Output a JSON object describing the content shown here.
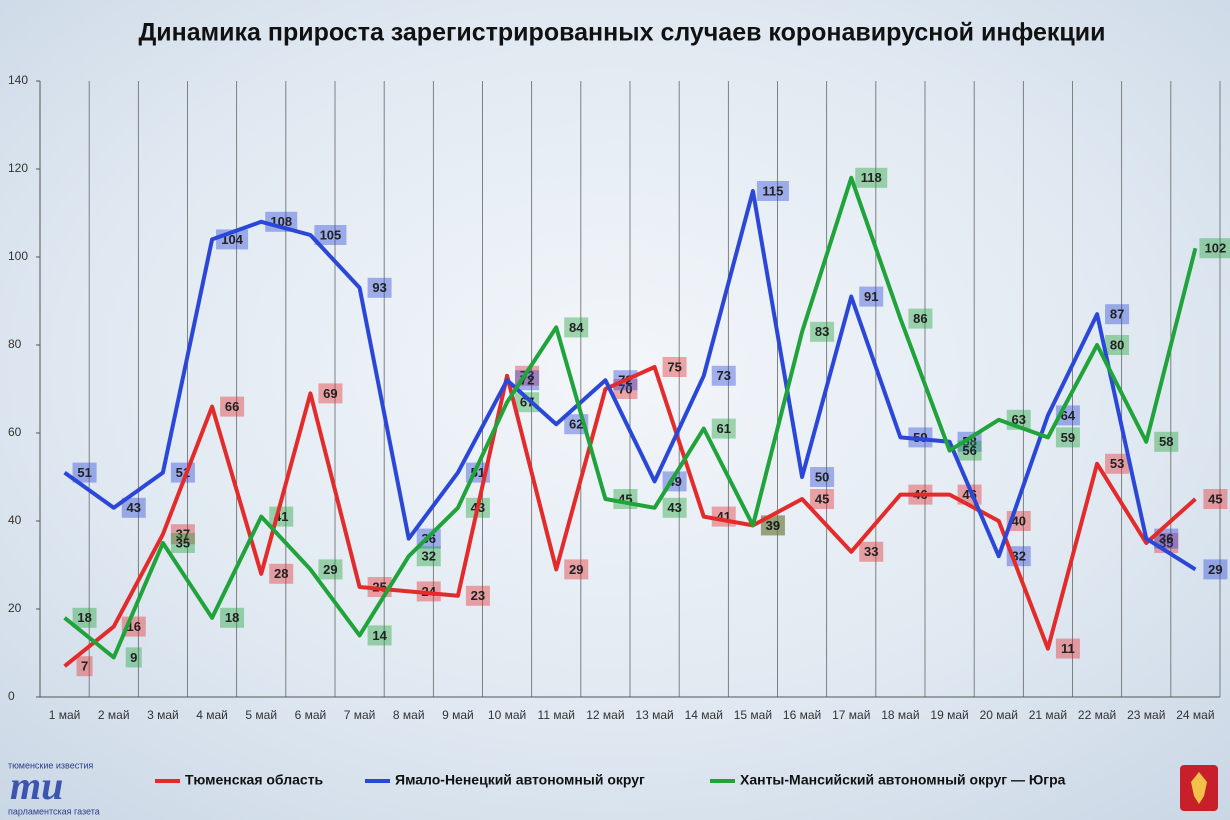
{
  "chart_data": {
    "type": "line",
    "title": "Динамика прироста зарегистрированных случаев коронавирусной инфекции",
    "categories": [
      "1 май",
      "2 май",
      "3 май",
      "4 май",
      "5 май",
      "6 май",
      "7 май",
      "8 май",
      "9 май",
      "10 май",
      "11 май",
      "12 май",
      "13 май",
      "14 май",
      "15 май",
      "16 май",
      "17 май",
      "18 май",
      "19 май",
      "20 май",
      "21 май",
      "22 май",
      "23 май",
      "24 май"
    ],
    "series": [
      {
        "name": "Тюменская область",
        "color": "#e32b2b",
        "values": [
          7,
          16,
          37,
          66,
          28,
          69,
          25,
          24,
          23,
          73,
          29,
          70,
          75,
          41,
          39,
          45,
          33,
          46,
          46,
          40,
          11,
          53,
          35,
          45
        ]
      },
      {
        "name": "Ямало-Ненецкий автономный округ",
        "color": "#2b47d8",
        "values": [
          51,
          43,
          51,
          104,
          108,
          105,
          93,
          36,
          51,
          72,
          62,
          72,
          49,
          73,
          115,
          50,
          91,
          59,
          58,
          32,
          64,
          87,
          36,
          29
        ]
      },
      {
        "name": "Ханты-Мансийский автономный округ — Югра",
        "color": "#1fa33a",
        "values": [
          18,
          9,
          35,
          18,
          41,
          29,
          14,
          32,
          43,
          67,
          84,
          45,
          43,
          61,
          39,
          83,
          118,
          86,
          56,
          63,
          59,
          80,
          58,
          102
        ]
      }
    ],
    "ylim": [
      0,
      140
    ],
    "yticks": [
      0,
      20,
      40,
      60,
      80,
      100,
      120,
      140
    ],
    "vertical_grid": true,
    "legend": "bottom",
    "logo": {
      "top": "тюменские известия",
      "mark": "тu",
      "bottom": "парламентская газета"
    }
  }
}
